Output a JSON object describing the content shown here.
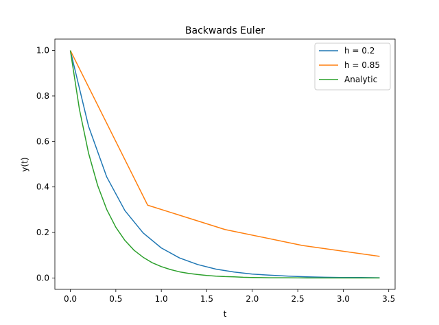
{
  "chart_data": {
    "type": "line",
    "title": "Backwards Euler",
    "xlabel": "t",
    "ylabel": "y(t)",
    "xlim": [
      -0.17,
      3.57
    ],
    "ylim": [
      -0.05,
      1.05
    ],
    "xticks": [
      0.0,
      0.5,
      1.0,
      1.5,
      2.0,
      2.5,
      3.0,
      3.5
    ],
    "xtick_labels": [
      "0.0",
      "0.5",
      "1.0",
      "1.5",
      "2.0",
      "2.5",
      "3.0",
      "3.5"
    ],
    "yticks": [
      0.0,
      0.2,
      0.4,
      0.6,
      0.8,
      1.0
    ],
    "ytick_labels": [
      "0.0",
      "0.2",
      "0.4",
      "0.6",
      "0.8",
      "1.0"
    ],
    "grid": false,
    "legend_position": "top-right",
    "series": [
      {
        "name": "h = 0.2",
        "color": "#1f77b4",
        "x": [
          0.0,
          0.2,
          0.4,
          0.6,
          0.8,
          1.0,
          1.2,
          1.4,
          1.6,
          1.8,
          2.0,
          2.2,
          2.4,
          2.6,
          2.8,
          3.0,
          3.2,
          3.4
        ],
        "y": [
          1.0,
          0.667,
          0.444,
          0.296,
          0.198,
          0.132,
          0.088,
          0.059,
          0.039,
          0.026,
          0.017,
          0.012,
          0.008,
          0.005,
          0.003,
          0.002,
          0.002,
          0.001
        ]
      },
      {
        "name": "h = 0.85",
        "color": "#ff7f0e",
        "x": [
          0.0,
          0.85,
          1.7,
          2.55,
          3.4
        ],
        "y": [
          1.0,
          0.32,
          0.213,
          0.143,
          0.095
        ]
      },
      {
        "name": "Analytic",
        "color": "#2ca02c",
        "x": [
          0.0,
          0.1,
          0.2,
          0.3,
          0.4,
          0.5,
          0.6,
          0.7,
          0.8,
          0.9,
          1.0,
          1.1,
          1.2,
          1.3,
          1.4,
          1.5,
          1.6,
          1.7,
          1.8,
          1.9,
          2.0,
          2.2,
          2.4,
          2.6,
          2.8,
          3.0,
          3.2,
          3.4
        ],
        "y": [
          1.0,
          0.741,
          0.549,
          0.407,
          0.301,
          0.223,
          0.165,
          0.122,
          0.091,
          0.067,
          0.05,
          0.037,
          0.027,
          0.02,
          0.015,
          0.011,
          0.008,
          0.006,
          0.005,
          0.003,
          0.002,
          0.001,
          0.001,
          0.0,
          0.0,
          0.0,
          0.0,
          0.0
        ]
      }
    ]
  }
}
